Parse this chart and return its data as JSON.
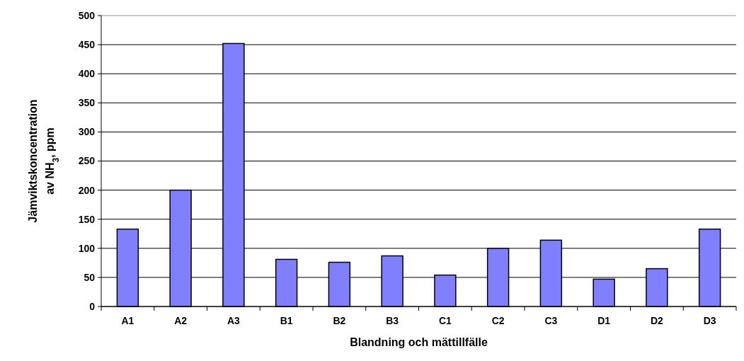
{
  "chart_data": {
    "type": "bar",
    "xlabel": "Blandning och mättillfälle",
    "ylabel": "Jämviktskoncentration av NH$_{3}$, ppm",
    "categories": [
      "A1",
      "A2",
      "A3",
      "B1",
      "B2",
      "B3",
      "C1",
      "C2",
      "C3",
      "D1",
      "D2",
      "D3"
    ],
    "values": [
      133,
      200,
      452,
      81,
      76,
      87,
      54,
      100,
      114,
      47,
      65,
      133
    ],
    "color": "#8080ff",
    "ylim": [
      0,
      500
    ],
    "yticks": [
      0,
      50,
      100,
      150,
      200,
      250,
      300,
      350,
      400,
      450,
      500
    ],
    "grid": "y"
  }
}
